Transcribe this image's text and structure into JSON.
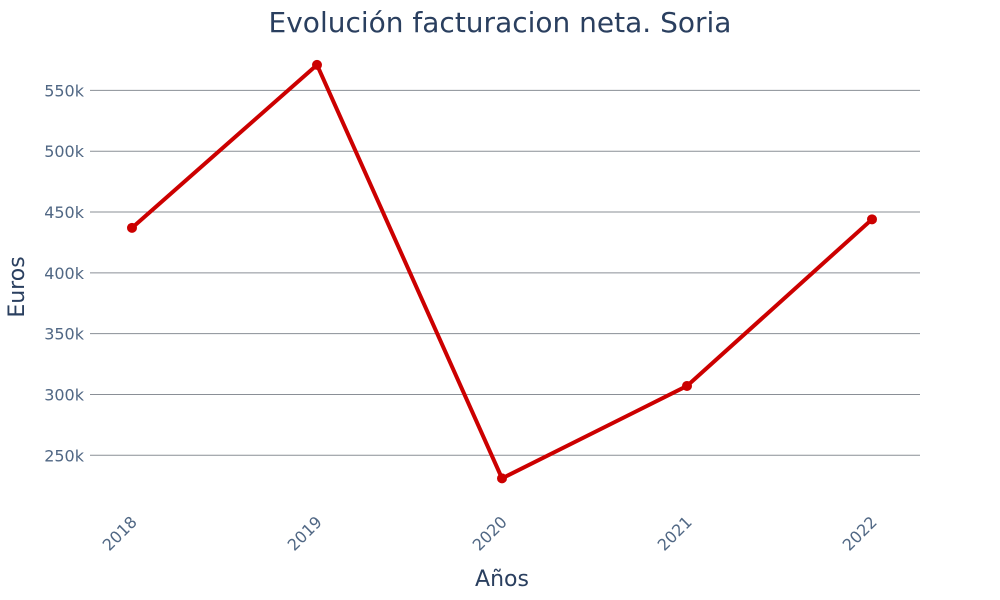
{
  "chart_data": {
    "type": "line",
    "title": "Evolución facturacion neta. Soria",
    "xlabel": "Años",
    "ylabel": "Euros",
    "categories": [
      "2018",
      "2019",
      "2020",
      "2021",
      "2022"
    ],
    "series": [
      {
        "values": [
          437000,
          571000,
          231000,
          307000,
          444000
        ]
      }
    ],
    "ylim": [
      205000,
      575000
    ],
    "yticks": [
      250000,
      300000,
      350000,
      400000,
      450000,
      500000,
      550000
    ],
    "ytick_labels": [
      "250k",
      "300k",
      "350k",
      "400k",
      "450k",
      "500k",
      "550k"
    ],
    "grid": true,
    "line_color": "#cc0000"
  }
}
